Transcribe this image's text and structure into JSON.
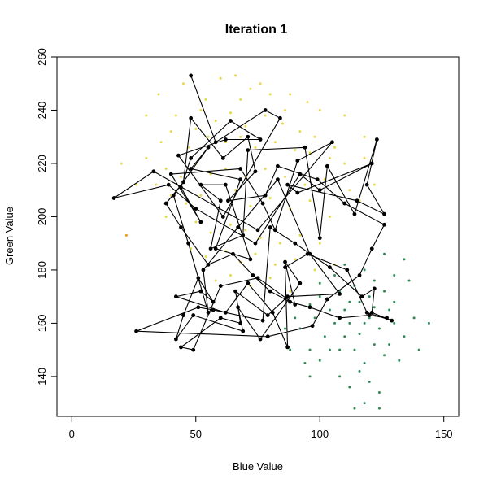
{
  "chart_data": {
    "type": "scatter",
    "title": "Iteration  1",
    "xlabel": "Blue Value",
    "ylabel": "Green Value",
    "xlim": [
      -6,
      156
    ],
    "ylim": [
      125,
      260
    ],
    "xticks": [
      0,
      50,
      100,
      150
    ],
    "yticks": [
      140,
      160,
      180,
      200,
      220,
      240,
      260
    ],
    "grid": false,
    "legend": "none",
    "colors": {
      "yellow": "#e8d84a",
      "green": "#2e8b57",
      "orange": "#e8a020",
      "path": "#000000"
    },
    "series": [
      {
        "color": "#e8d84a",
        "points": [
          [
            35,
            246
          ],
          [
            45,
            250
          ],
          [
            60,
            252
          ],
          [
            66,
            253
          ],
          [
            72,
            248
          ],
          [
            80,
            246
          ],
          [
            88,
            246
          ],
          [
            95,
            243
          ],
          [
            100,
            240
          ],
          [
            42,
            238
          ],
          [
            52,
            240
          ],
          [
            58,
            236
          ],
          [
            64,
            239
          ],
          [
            70,
            234
          ],
          [
            78,
            238
          ],
          [
            85,
            235
          ],
          [
            92,
            232
          ],
          [
            98,
            230
          ],
          [
            36,
            228
          ],
          [
            40,
            232
          ],
          [
            47,
            226
          ],
          [
            55,
            230
          ],
          [
            62,
            228
          ],
          [
            68,
            230
          ],
          [
            74,
            226
          ],
          [
            82,
            228
          ],
          [
            90,
            225
          ],
          [
            96,
            224
          ],
          [
            104,
            222
          ],
          [
            110,
            220
          ],
          [
            30,
            222
          ],
          [
            38,
            218
          ],
          [
            44,
            215
          ],
          [
            50,
            220
          ],
          [
            56,
            216
          ],
          [
            62,
            218
          ],
          [
            70,
            215
          ],
          [
            78,
            218
          ],
          [
            86,
            215
          ],
          [
            94,
            212
          ],
          [
            102,
            214
          ],
          [
            112,
            210
          ],
          [
            118,
            222
          ],
          [
            34,
            212
          ],
          [
            40,
            208
          ],
          [
            46,
            205
          ],
          [
            52,
            208
          ],
          [
            60,
            206
          ],
          [
            66,
            210
          ],
          [
            72,
            204
          ],
          [
            80,
            207
          ],
          [
            88,
            203
          ],
          [
            96,
            206
          ],
          [
            104,
            200
          ],
          [
            116,
            206
          ],
          [
            38,
            200
          ],
          [
            44,
            196
          ],
          [
            50,
            198
          ],
          [
            56,
            194
          ],
          [
            64,
            197
          ],
          [
            70,
            195
          ],
          [
            76,
            192
          ],
          [
            84,
            190
          ],
          [
            92,
            193
          ],
          [
            100,
            190
          ],
          [
            48,
            188
          ],
          [
            54,
            185
          ],
          [
            62,
            187
          ],
          [
            68,
            183
          ],
          [
            74,
            186
          ],
          [
            82,
            182
          ],
          [
            90,
            184
          ],
          [
            98,
            180
          ],
          [
            106,
            182
          ],
          [
            58,
            176
          ],
          [
            64,
            178
          ],
          [
            72,
            174
          ],
          [
            80,
            177
          ],
          [
            88,
            172
          ],
          [
            20,
            220
          ],
          [
            26,
            212
          ],
          [
            22,
            193
          ],
          [
            30,
            238
          ],
          [
            110,
            238
          ],
          [
            118,
            230
          ],
          [
            54,
            244
          ],
          [
            76,
            250
          ],
          [
            86,
            240
          ],
          [
            68,
            244
          ],
          [
            50,
            233
          ],
          [
            106,
            226
          ],
          [
            122,
            212
          ]
        ]
      },
      {
        "color": "#2e8b57",
        "points": [
          [
            100,
            170
          ],
          [
            104,
            165
          ],
          [
            108,
            172
          ],
          [
            112,
            160
          ],
          [
            116,
            168
          ],
          [
            120,
            162
          ],
          [
            124,
            158
          ],
          [
            128,
            165
          ],
          [
            110,
            155
          ],
          [
            114,
            150
          ],
          [
            118,
            145
          ],
          [
            122,
            152
          ],
          [
            126,
            148
          ],
          [
            106,
            160
          ],
          [
            102,
            155
          ],
          [
            98,
            162
          ],
          [
            96,
            150
          ],
          [
            94,
            145
          ],
          [
            108,
            140
          ],
          [
            112,
            136
          ],
          [
            116,
            142
          ],
          [
            120,
            138
          ],
          [
            124,
            134
          ],
          [
            118,
            130
          ],
          [
            114,
            128
          ],
          [
            130,
            160
          ],
          [
            134,
            155
          ],
          [
            138,
            162
          ],
          [
            140,
            150
          ],
          [
            144,
            160
          ],
          [
            126,
            172
          ],
          [
            122,
            176
          ],
          [
            118,
            180
          ],
          [
            114,
            174
          ],
          [
            110,
            182
          ],
          [
            106,
            178
          ],
          [
            130,
            168
          ],
          [
            100,
            146
          ],
          [
            96,
            140
          ],
          [
            92,
            158
          ],
          [
            120,
            170
          ],
          [
            104,
            150
          ],
          [
            116,
            156
          ],
          [
            110,
            165
          ],
          [
            128,
            152
          ],
          [
            132,
            146
          ],
          [
            112,
            168
          ],
          [
            108,
            150
          ],
          [
            122,
            166
          ],
          [
            118,
            160
          ],
          [
            124,
            128
          ],
          [
            136,
            176
          ],
          [
            134,
            184
          ],
          [
            130,
            178
          ],
          [
            126,
            186
          ],
          [
            100,
            175
          ],
          [
            96,
            167
          ],
          [
            90,
            162
          ],
          [
            86,
            158
          ],
          [
            88,
            150
          ]
        ]
      },
      {
        "color": "#e8a020",
        "points": [
          [
            22,
            193
          ]
        ]
      }
    ],
    "path": [
      [
        48,
        253
      ],
      [
        58,
        228
      ],
      [
        78,
        240
      ],
      [
        84,
        237
      ],
      [
        61,
        200
      ],
      [
        43,
        223
      ],
      [
        62,
        229
      ],
      [
        76,
        229
      ],
      [
        64,
        236
      ],
      [
        48,
        222
      ],
      [
        44,
        211
      ],
      [
        52,
        198
      ],
      [
        40,
        216
      ],
      [
        68,
        218
      ],
      [
        77,
        205
      ],
      [
        82,
        195
      ],
      [
        91,
        221
      ],
      [
        105,
        228
      ],
      [
        75,
        195
      ],
      [
        33,
        217
      ],
      [
        17,
        207
      ],
      [
        39,
        212
      ],
      [
        50,
        203
      ],
      [
        74,
        190
      ],
      [
        92,
        216
      ],
      [
        100,
        210
      ],
      [
        121,
        220
      ],
      [
        91,
        209
      ],
      [
        87,
        212
      ],
      [
        115,
        206
      ],
      [
        126,
        201
      ],
      [
        119,
        212
      ],
      [
        123,
        229
      ],
      [
        114,
        201
      ],
      [
        103,
        219
      ],
      [
        100,
        192
      ],
      [
        94,
        226
      ],
      [
        71,
        225
      ],
      [
        69,
        193
      ],
      [
        56,
        188
      ],
      [
        60,
        206
      ],
      [
        52,
        212
      ],
      [
        62,
        212
      ],
      [
        72,
        184
      ],
      [
        58,
        188
      ],
      [
        68,
        214
      ],
      [
        48,
        218
      ],
      [
        55,
        226
      ],
      [
        41,
        208
      ],
      [
        47,
        190
      ],
      [
        55,
        164
      ],
      [
        53,
        180
      ],
      [
        67,
        196
      ],
      [
        83,
        214
      ],
      [
        96,
        186
      ],
      [
        108,
        171
      ],
      [
        87,
        170
      ],
      [
        79,
        163
      ],
      [
        66,
        172
      ],
      [
        68,
        160
      ],
      [
        60,
        162
      ],
      [
        44,
        151
      ],
      [
        49,
        150
      ],
      [
        60,
        174
      ],
      [
        75,
        177
      ],
      [
        90,
        167
      ],
      [
        86,
        183
      ],
      [
        92,
        175
      ],
      [
        76,
        154
      ],
      [
        67,
        166
      ],
      [
        69,
        157
      ],
      [
        49,
        163
      ],
      [
        42,
        154
      ],
      [
        45,
        163
      ],
      [
        51,
        177
      ],
      [
        57,
        168
      ],
      [
        52,
        172
      ],
      [
        42,
        170
      ],
      [
        62,
        164
      ],
      [
        71,
        175
      ],
      [
        81,
        164
      ],
      [
        87,
        151
      ],
      [
        86,
        181
      ],
      [
        95,
        186
      ],
      [
        111,
        180
      ],
      [
        119,
        164
      ],
      [
        129,
        161
      ],
      [
        121,
        164
      ],
      [
        122,
        173
      ],
      [
        117,
        170
      ],
      [
        104,
        181
      ],
      [
        90,
        190
      ],
      [
        80,
        196
      ],
      [
        77,
        161
      ],
      [
        57,
        165
      ],
      [
        51,
        166
      ],
      [
        26,
        157
      ],
      [
        79,
        155
      ],
      [
        97,
        159
      ],
      [
        103,
        169
      ],
      [
        116,
        178
      ],
      [
        121,
        188
      ],
      [
        126,
        197
      ],
      [
        110,
        205
      ],
      [
        99,
        214
      ],
      [
        83,
        219
      ],
      [
        78,
        208
      ],
      [
        63,
        206
      ],
      [
        74,
        217
      ],
      [
        71,
        230
      ],
      [
        61,
        222
      ],
      [
        48,
        237
      ],
      [
        45,
        213
      ],
      [
        38,
        205
      ],
      [
        44,
        196
      ],
      [
        55,
        182
      ],
      [
        65,
        186
      ],
      [
        73,
        178
      ],
      [
        80,
        172
      ],
      [
        88,
        168
      ],
      [
        96,
        166
      ],
      [
        108,
        162
      ],
      [
        120,
        163
      ],
      [
        127,
        162
      ]
    ]
  }
}
